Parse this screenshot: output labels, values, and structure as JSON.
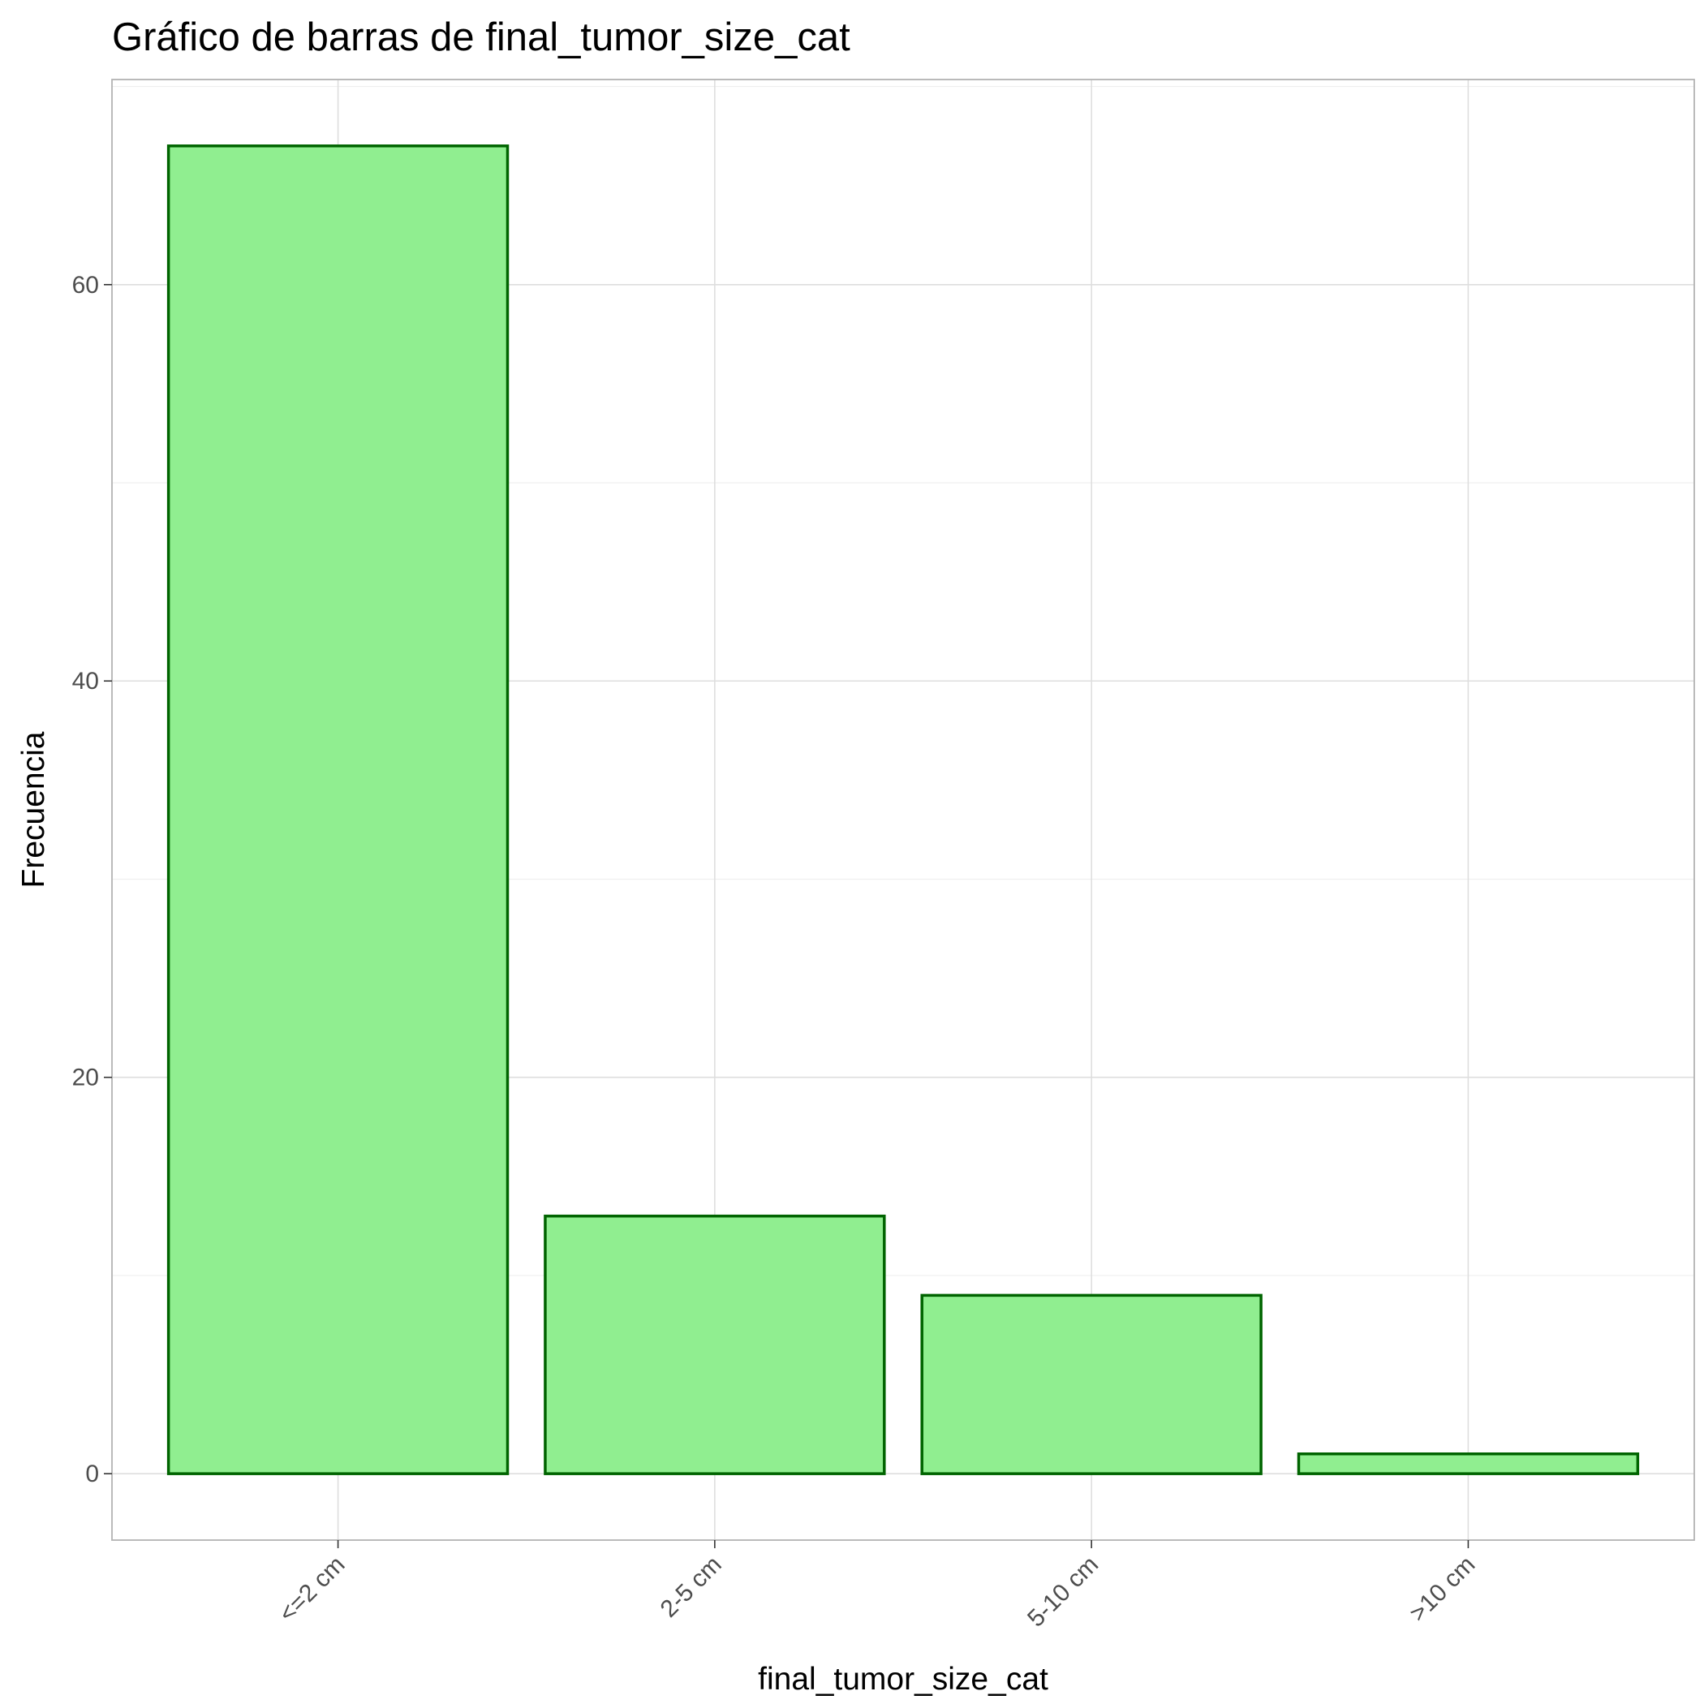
{
  "chart_data": {
    "type": "bar",
    "title": "Gráfico de barras de final_tumor_size_cat",
    "xlabel": "final_tumor_size_cat",
    "ylabel": "Frecuencia",
    "categories": [
      "<=2 cm",
      "2-5 cm",
      "5-10 cm",
      ">10 cm"
    ],
    "values": [
      67,
      13,
      9,
      1
    ],
    "yticks": [
      0,
      20,
      40,
      60
    ],
    "ylim": [
      -3.35,
      70.35
    ],
    "grid": true,
    "legend": "none",
    "bar_fill": "#90EE90",
    "bar_stroke": "#006400"
  }
}
